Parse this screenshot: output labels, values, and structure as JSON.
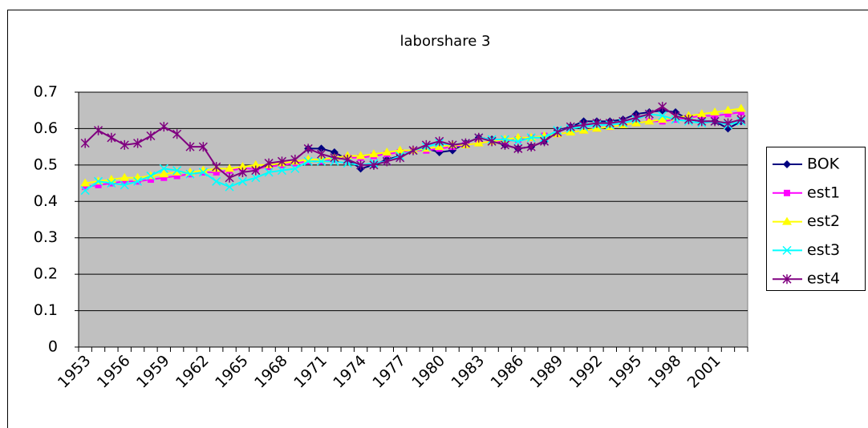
{
  "chart_data": {
    "type": "line",
    "title": "laborshare 3",
    "categories": [
      "1953",
      null,
      null,
      "1956",
      null,
      null,
      "1959",
      null,
      null,
      "1962",
      null,
      null,
      "1965",
      null,
      null,
      "1968",
      null,
      null,
      "1971",
      null,
      null,
      "1974",
      null,
      null,
      "1977",
      null,
      null,
      "1980",
      null,
      null,
      "1983",
      null,
      null,
      "1986",
      null,
      null,
      "1989",
      null,
      null,
      "1992",
      null,
      null,
      "1995",
      null,
      null,
      "1998",
      null,
      null,
      "2001",
      null,
      null
    ],
    "ylim": [
      0,
      0.7
    ],
    "yticks": [
      0,
      0.1,
      0.2,
      0.3,
      0.4,
      0.5,
      0.6,
      0.7
    ],
    "grid": true,
    "legend": "right",
    "series": [
      {
        "name": "BOK",
        "color": "#000080",
        "marker": "diamond",
        "values": [
          null,
          null,
          null,
          null,
          null,
          null,
          null,
          null,
          null,
          null,
          null,
          null,
          null,
          null,
          null,
          null,
          null,
          0.545,
          0.545,
          0.535,
          0.515,
          0.49,
          0.5,
          0.515,
          0.525,
          0.54,
          0.545,
          0.535,
          0.54,
          0.56,
          0.575,
          0.57,
          0.555,
          0.545,
          0.55,
          0.565,
          0.595,
          0.605,
          0.62,
          0.62,
          0.62,
          0.625,
          0.64,
          0.645,
          0.65,
          0.645,
          0.625,
          0.62,
          0.62,
          0.6,
          0.62
        ]
      },
      {
        "name": "est1",
        "color": "#ff00ff",
        "marker": "square",
        "values": [
          0.44,
          0.445,
          0.45,
          0.455,
          0.455,
          0.46,
          0.465,
          0.47,
          0.475,
          0.48,
          0.48,
          0.485,
          0.49,
          0.49,
          0.495,
          0.5,
          0.505,
          0.51,
          0.51,
          0.515,
          0.52,
          0.52,
          0.525,
          0.53,
          0.535,
          0.54,
          0.54,
          0.545,
          0.55,
          0.555,
          0.56,
          0.565,
          0.565,
          0.57,
          0.575,
          0.58,
          0.585,
          0.59,
          0.595,
          0.6,
          0.605,
          0.61,
          0.615,
          0.62,
          0.62,
          0.625,
          0.63,
          0.635,
          0.635,
          0.64,
          0.645
        ]
      },
      {
        "name": "est2",
        "color": "#ffff00",
        "marker": "triangle",
        "values": [
          0.45,
          0.455,
          0.46,
          0.465,
          0.465,
          0.47,
          0.475,
          0.48,
          0.48,
          0.485,
          0.49,
          0.49,
          0.495,
          0.5,
          0.5,
          0.505,
          0.51,
          0.515,
          0.515,
          0.52,
          0.525,
          0.525,
          0.53,
          0.535,
          0.54,
          0.54,
          0.545,
          0.55,
          0.555,
          0.555,
          0.56,
          0.565,
          0.57,
          0.575,
          0.575,
          0.58,
          0.585,
          0.59,
          0.595,
          0.6,
          0.605,
          0.61,
          0.615,
          0.62,
          0.625,
          0.63,
          0.635,
          0.64,
          0.645,
          0.65,
          0.655
        ]
      },
      {
        "name": "est3",
        "color": "#00ffff",
        "marker": "x",
        "values": [
          0.43,
          0.455,
          0.45,
          0.445,
          0.455,
          0.47,
          0.49,
          0.485,
          0.475,
          0.48,
          0.455,
          0.44,
          0.455,
          0.465,
          0.48,
          0.485,
          0.49,
          0.51,
          0.51,
          0.51,
          0.505,
          0.5,
          0.505,
          0.51,
          0.525,
          0.54,
          0.55,
          0.56,
          0.555,
          0.56,
          0.575,
          0.57,
          0.57,
          0.565,
          0.575,
          0.575,
          0.595,
          0.6,
          0.605,
          0.61,
          0.61,
          0.615,
          0.625,
          0.64,
          0.635,
          0.625,
          0.62,
          0.615,
          0.62,
          0.61,
          0.62
        ]
      },
      {
        "name": "est4",
        "color": "#800080",
        "marker": "star",
        "values": [
          0.56,
          0.595,
          0.575,
          0.555,
          0.56,
          0.58,
          0.605,
          0.585,
          0.55,
          0.55,
          0.495,
          0.465,
          0.48,
          0.485,
          0.505,
          0.51,
          0.515,
          0.545,
          0.53,
          0.52,
          0.515,
          0.5,
          0.5,
          0.51,
          0.52,
          0.54,
          0.555,
          0.565,
          0.555,
          0.56,
          0.575,
          0.565,
          0.555,
          0.545,
          0.55,
          0.565,
          0.59,
          0.605,
          0.61,
          0.615,
          0.615,
          0.62,
          0.63,
          0.64,
          0.66,
          0.635,
          0.625,
          0.62,
          0.62,
          0.615,
          0.625
        ]
      }
    ]
  }
}
